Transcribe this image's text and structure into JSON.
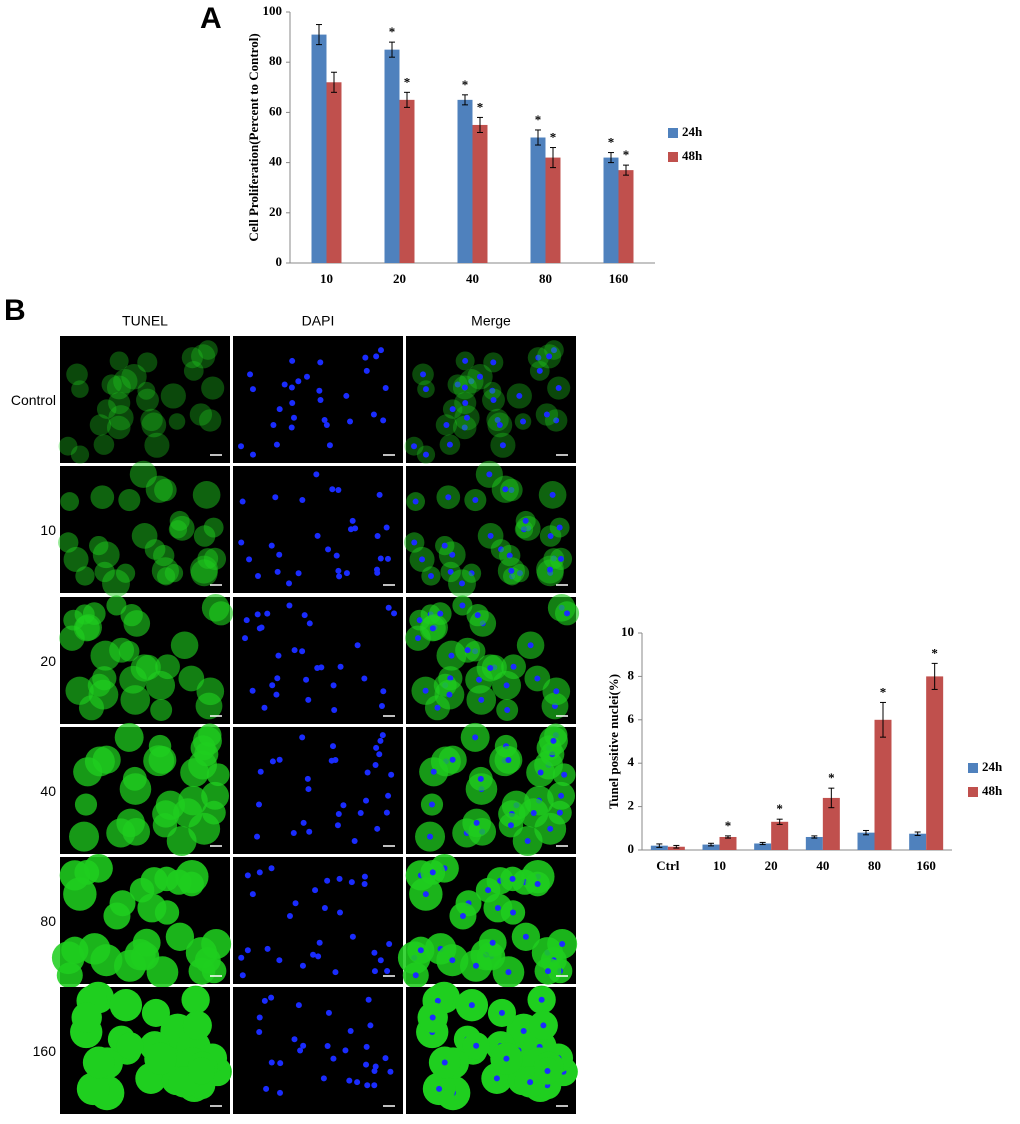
{
  "panel_labels": [
    "A",
    "B"
  ],
  "image_grid": {
    "columns": [
      "TUNEL",
      "DAPI",
      "Merge"
    ],
    "rows": [
      "Control",
      "10",
      "20",
      "40",
      "80",
      "160"
    ]
  },
  "chart_data": [
    {
      "type": "bar",
      "y_label": "Cell Proliferation(Percent to Control)",
      "categories": [
        "10",
        "20",
        "40",
        "80",
        "160"
      ],
      "series": [
        {
          "name": "24h",
          "color": "#4f81bd",
          "values": [
            91,
            85,
            65,
            50,
            42
          ],
          "errors": [
            4,
            3,
            2,
            3,
            2
          ],
          "significance": [
            null,
            "*",
            "*",
            "*",
            "*"
          ]
        },
        {
          "name": "48h",
          "color": "#c0504d",
          "values": [
            72,
            65,
            55,
            42,
            37
          ],
          "errors": [
            4,
            3,
            3,
            4,
            2
          ],
          "significance": [
            null,
            "*",
            "*",
            "*",
            "*"
          ]
        }
      ],
      "ylim": [
        0,
        100
      ],
      "yticks": [
        0,
        20,
        40,
        60,
        80,
        100
      ],
      "grid": false,
      "legend": "right"
    },
    {
      "type": "bar",
      "y_label": "Tunel positive nuclei(%)",
      "categories": [
        "Ctrl",
        "10",
        "20",
        "40",
        "80",
        "160"
      ],
      "series": [
        {
          "name": "24h",
          "color": "#4f81bd",
          "values": [
            0.2,
            0.25,
            0.3,
            0.6,
            0.8,
            0.75
          ],
          "errors": [
            0.08,
            0.06,
            0.05,
            0.05,
            0.1,
            0.08
          ],
          "significance": [
            null,
            null,
            null,
            null,
            null,
            null
          ]
        },
        {
          "name": "48h",
          "color": "#c0504d",
          "values": [
            0.15,
            0.6,
            1.3,
            2.4,
            6,
            8
          ],
          "errors": [
            0.06,
            0.05,
            0.12,
            0.45,
            0.8,
            0.6
          ],
          "significance": [
            null,
            "*",
            "*",
            "*",
            "*",
            "*"
          ]
        }
      ],
      "ylim": [
        0,
        10
      ],
      "yticks": [
        0,
        2,
        4,
        6,
        8,
        10
      ],
      "grid": false,
      "legend": "right"
    }
  ]
}
